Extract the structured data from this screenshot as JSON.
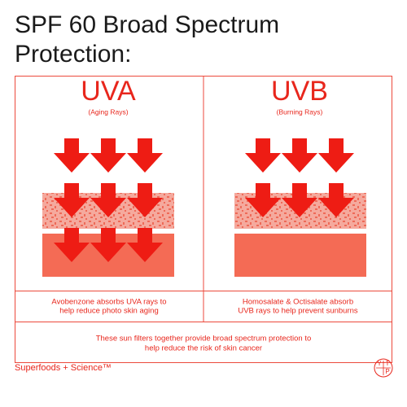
{
  "title": [
    "SPF 60 Broad Spectrum",
    "Protection:"
  ],
  "panels": [
    {
      "heading": "UVA",
      "subheading": "(Aging Rays)",
      "description": [
        "Avobenzone absorbs UVA rays to",
        "help reduce photo skin aging"
      ]
    },
    {
      "heading": "UVB",
      "subheading": "(Burning Rays)",
      "description": [
        "Homosalate & Octisalate absorb",
        "UVB rays to help prevent sunburns"
      ]
    }
  ],
  "summary": [
    "These sun filters together provide broad spectrum protection to",
    "help reduce the risk of skin cancer"
  ],
  "footer": {
    "brand": "Superfoods + Science™",
    "logo": [
      "Y",
      "T",
      "P"
    ]
  }
}
